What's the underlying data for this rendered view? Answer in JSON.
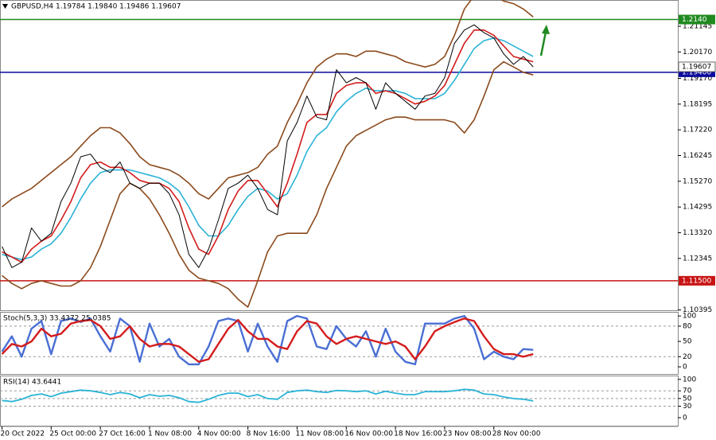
{
  "chart_data": [
    {
      "type": "line",
      "title": "GBPUSD,H4  1.19784 1.19840 1.19486 1.19607",
      "categories": [
        "20 Oct 2022",
        null,
        null,
        null,
        null,
        "25 Oct 00:00",
        null,
        null,
        null,
        null,
        "27 Oct 16:00",
        null,
        null,
        null,
        null,
        "1 Nov 08:00",
        null,
        null,
        null,
        null,
        "4 Nov 00:00",
        null,
        null,
        null,
        null,
        "8 Nov 16:00",
        null,
        null,
        null,
        null,
        "11 Nov 08:00",
        null,
        null,
        null,
        null,
        "16 Nov 00:00",
        null,
        null,
        null,
        null,
        "18 Nov 16:00",
        null,
        null,
        null,
        null,
        "23 Nov 08:00",
        null,
        null,
        null,
        null,
        "28 Nov 00:00",
        null,
        null,
        null,
        null
      ],
      "series": [
        {
          "color": "#8b4a1c",
          "values": [
            1.143,
            1.146,
            1.148,
            1.15,
            1.153,
            1.156,
            1.159,
            1.162,
            1.166,
            1.17,
            1.173,
            1.173,
            1.171,
            1.167,
            1.162,
            1.159,
            1.158,
            1.157,
            1.155,
            1.152,
            1.148,
            1.146,
            1.15,
            1.154,
            1.155,
            1.156,
            1.158,
            1.163,
            1.166,
            1.175,
            1.182,
            1.19,
            1.196,
            1.199,
            1.201,
            1.201,
            1.2,
            1.202,
            1.202,
            1.201,
            1.2,
            1.198,
            1.197,
            1.196,
            1.197,
            1.2,
            1.208,
            1.218,
            1.223,
            1.224,
            1.223,
            1.221,
            1.22,
            1.218,
            1.215
          ]
        },
        {
          "color": "#8b4a1c",
          "values": [
            1.117,
            1.114,
            1.112,
            1.114,
            1.115,
            1.114,
            1.113,
            1.113,
            1.115,
            1.12,
            1.128,
            1.138,
            1.148,
            1.152,
            1.15,
            1.146,
            1.14,
            1.133,
            1.125,
            1.119,
            1.116,
            1.115,
            1.114,
            1.112,
            1.108,
            1.105,
            1.115,
            1.126,
            1.132,
            1.133,
            1.133,
            1.133,
            1.14,
            1.15,
            1.158,
            1.166,
            1.17,
            1.172,
            1.174,
            1.176,
            1.177,
            1.177,
            1.176,
            1.176,
            1.176,
            1.176,
            1.175,
            1.171,
            1.176,
            1.185,
            1.195,
            1.198,
            1.196,
            1.194,
            1.193
          ]
        },
        {
          "color": "#2bb3d6",
          "values": [
            1.125,
            1.124,
            1.123,
            1.124,
            1.127,
            1.129,
            1.133,
            1.139,
            1.146,
            1.152,
            1.156,
            1.157,
            1.157,
            1.157,
            1.156,
            1.155,
            1.154,
            1.152,
            1.149,
            1.143,
            1.136,
            1.132,
            1.132,
            1.136,
            1.142,
            1.147,
            1.15,
            1.149,
            1.146,
            1.148,
            1.155,
            1.164,
            1.17,
            1.173,
            1.179,
            1.183,
            1.186,
            1.188,
            1.187,
            1.187,
            1.187,
            1.186,
            1.184,
            1.184,
            1.184,
            1.186,
            1.191,
            1.197,
            1.203,
            1.206,
            1.207,
            1.206,
            1.204,
            1.202,
            1.2
          ]
        },
        {
          "color": "#d41c1c",
          "values": [
            1.126,
            1.124,
            1.122,
            1.127,
            1.13,
            1.132,
            1.138,
            1.145,
            1.154,
            1.159,
            1.16,
            1.158,
            1.158,
            1.156,
            1.153,
            1.152,
            1.152,
            1.15,
            1.145,
            1.135,
            1.127,
            1.125,
            1.132,
            1.142,
            1.149,
            1.153,
            1.153,
            1.148,
            1.143,
            1.152,
            1.163,
            1.175,
            1.178,
            1.178,
            1.186,
            1.189,
            1.19,
            1.19,
            1.186,
            1.187,
            1.186,
            1.184,
            1.182,
            1.183,
            1.185,
            1.189,
            1.197,
            1.205,
            1.21,
            1.21,
            1.208,
            1.204,
            1.2,
            1.199,
            1.198
          ]
        },
        {
          "color": "#000000",
          "values": [
            1.128,
            1.12,
            1.122,
            1.135,
            1.13,
            1.133,
            1.145,
            1.152,
            1.162,
            1.163,
            1.158,
            1.156,
            1.16,
            1.152,
            1.15,
            1.152,
            1.152,
            1.148,
            1.14,
            1.125,
            1.12,
            1.127,
            1.138,
            1.15,
            1.152,
            1.155,
            1.15,
            1.142,
            1.14,
            1.168,
            1.175,
            1.185,
            1.177,
            1.176,
            1.195,
            1.19,
            1.192,
            1.19,
            1.18,
            1.19,
            1.186,
            1.183,
            1.18,
            1.185,
            1.186,
            1.192,
            1.205,
            1.21,
            1.212,
            1.209,
            1.207,
            1.201,
            1.197,
            1.2,
            1.19607
          ]
        }
      ],
      "ylim": [
        1.1038,
        1.2214
      ],
      "yticks": [
        1.21145,
        {
          "value": 1.2017,
          "label": "1.20170"
        },
        {
          "value": 1.1917,
          "label": "1.19170"
        },
        1.18195,
        {
          "value": 1.1722,
          "label": "1.17220"
        },
        1.16245,
        {
          "value": 1.1527,
          "label": "1.15270"
        },
        1.14295,
        {
          "value": 1.1332,
          "label": "1.13320"
        },
        1.12345,
        1.10395
      ],
      "hlines": [
        {
          "value": 1.214,
          "label": "1.2140",
          "color": "#1f8a1f"
        },
        {
          "value": 1.194,
          "label": "1.19400",
          "color": "#0a0a9c"
        },
        {
          "value": 1.115,
          "label": "1.11500",
          "color": "#c81414"
        }
      ],
      "last_price": 1.19607
    },
    {
      "type": "line",
      "title": "Stoch(5,3,3) 33.4372 25.0385",
      "series": [
        {
          "color": "#4a6fd4",
          "values": [
            30,
            60,
            20,
            75,
            90,
            25,
            90,
            95,
            88,
            95,
            60,
            30,
            95,
            80,
            10,
            85,
            40,
            55,
            20,
            5,
            5,
            40,
            90,
            95,
            90,
            30,
            85,
            40,
            10,
            90,
            100,
            95,
            40,
            35,
            80,
            55,
            40,
            70,
            20,
            75,
            30,
            10,
            5,
            85,
            85,
            85,
            95,
            100,
            75,
            15,
            30,
            20,
            15,
            35,
            33.4372
          ]
        },
        {
          "color": "#d41c1c",
          "values": [
            25,
            45,
            40,
            50,
            75,
            60,
            65,
            85,
            90,
            92,
            80,
            55,
            60,
            80,
            55,
            40,
            45,
            45,
            40,
            25,
            10,
            15,
            45,
            75,
            92,
            70,
            55,
            55,
            40,
            35,
            70,
            90,
            85,
            60,
            45,
            55,
            60,
            55,
            50,
            45,
            50,
            40,
            15,
            40,
            70,
            80,
            88,
            95,
            90,
            60,
            35,
            25,
            25,
            20,
            25.0385
          ]
        }
      ],
      "ylim": [
        -14,
        108
      ],
      "yticks": [
        0,
        20,
        50,
        80,
        100
      ],
      "levels": [
        20,
        80
      ]
    },
    {
      "type": "line",
      "title": "RSI(14) 43.6441",
      "series": [
        {
          "color": "#2bb3d6",
          "values": [
            45,
            42,
            48,
            58,
            62,
            55,
            64,
            68,
            72,
            70,
            66,
            60,
            66,
            62,
            52,
            60,
            56,
            58,
            52,
            42,
            40,
            48,
            58,
            64,
            64,
            55,
            60,
            50,
            48,
            66,
            70,
            72,
            68,
            66,
            71,
            70,
            68,
            70,
            62,
            69,
            64,
            60,
            60,
            68,
            68,
            68,
            70,
            74,
            72,
            62,
            60,
            54,
            50,
            48,
            43.6441
          ]
        }
      ],
      "ylim": [
        -21,
        110
      ],
      "yticks": [
        0,
        30,
        50,
        70,
        100
      ],
      "levels": [
        30,
        50,
        70
      ]
    }
  ]
}
